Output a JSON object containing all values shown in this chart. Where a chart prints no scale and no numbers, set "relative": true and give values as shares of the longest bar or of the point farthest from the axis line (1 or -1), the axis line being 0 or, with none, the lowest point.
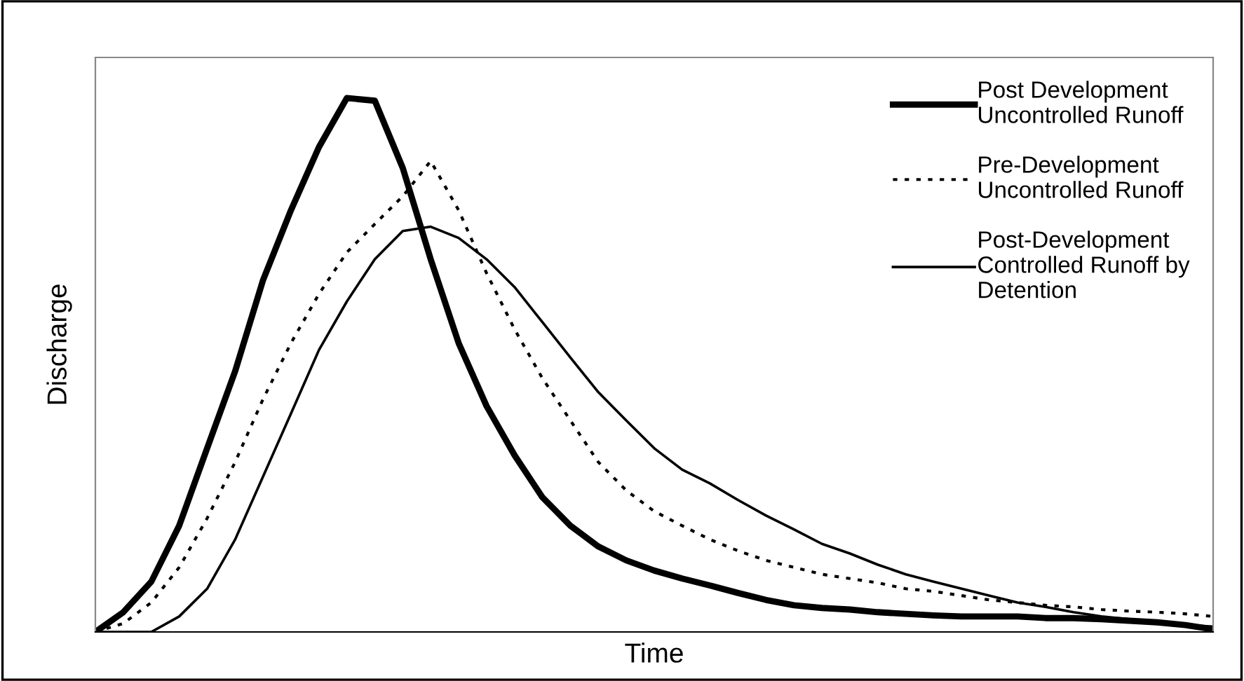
{
  "chart_data": {
    "type": "line",
    "xlabel": "Time",
    "ylabel": "Discharge",
    "relative": true,
    "legend": "top right",
    "grid": false,
    "marker": "none",
    "categories": [
      null,
      null,
      null,
      null,
      null,
      null,
      null,
      null,
      null,
      null,
      null,
      null,
      null,
      null,
      null,
      null,
      null,
      null,
      null,
      null,
      null,
      null,
      null,
      null,
      null,
      null,
      null,
      null,
      null,
      null,
      null,
      null,
      null,
      null,
      null,
      null,
      null,
      null,
      null,
      null,
      null
    ],
    "series": [
      {
        "name": "Post Development\nUncontrolled Runoff",
        "color": "#000000",
        "line_style": "solid",
        "values": [
          0,
          0.037,
          0.094,
          0.199,
          0.344,
          0.488,
          0.659,
          0.79,
          0.908,
          1,
          0.995,
          0.869,
          0.698,
          0.541,
          0.423,
          0.331,
          0.252,
          0.199,
          0.16,
          0.134,
          0.115,
          0.1,
          0.087,
          0.073,
          0.06,
          0.05,
          0.045,
          0.042,
          0.037,
          0.034,
          0.031,
          0.029,
          0.029,
          0.029,
          0.026,
          0.026,
          0.024,
          0.021,
          0.018,
          0.013,
          0.005
        ]
      },
      {
        "name": "Pre-Development\nUncontrolled Runoff",
        "color": "#000000",
        "line_style": "dotted",
        "values": [
          0,
          0.016,
          0.055,
          0.121,
          0.213,
          0.318,
          0.436,
          0.541,
          0.633,
          0.711,
          0.764,
          0.816,
          0.882,
          0.79,
          0.672,
          0.567,
          0.475,
          0.396,
          0.318,
          0.265,
          0.226,
          0.199,
          0.173,
          0.152,
          0.134,
          0.121,
          0.108,
          0.1,
          0.092,
          0.081,
          0.076,
          0.068,
          0.06,
          0.055,
          0.05,
          0.047,
          0.042,
          0.039,
          0.037,
          0.034,
          0.029
        ]
      },
      {
        "name": "Post-Development\nControlled Runoff by\nDetention",
        "color": "#000000",
        "line_style": "solid",
        "values": [
          0,
          0,
          0,
          0.029,
          0.081,
          0.173,
          0.291,
          0.409,
          0.528,
          0.619,
          0.698,
          0.751,
          0.759,
          0.738,
          0.698,
          0.646,
          0.58,
          0.514,
          0.449,
          0.396,
          0.344,
          0.304,
          0.278,
          0.247,
          0.218,
          0.192,
          0.165,
          0.147,
          0.126,
          0.108,
          0.094,
          0.081,
          0.068,
          0.055,
          0.047,
          0.037,
          0.029,
          0.024,
          0.018,
          0.013,
          0.01
        ]
      }
    ]
  }
}
